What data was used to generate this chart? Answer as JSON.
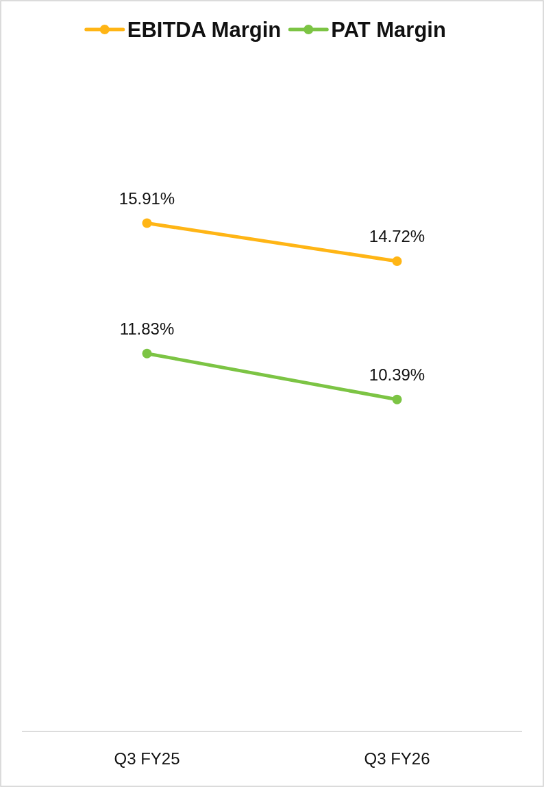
{
  "chart_data": {
    "type": "line",
    "categories": [
      "Q3 FY25",
      "Q3 FY26"
    ],
    "tick_labels": "x",
    "legend": "top",
    "marker": "circle",
    "line_style": "solid",
    "series": [
      {
        "name": "EBITDA Margin",
        "color": "#ffb515",
        "values": [
          15.91,
          14.72
        ],
        "value_labels": [
          "15.91%",
          "14.72%"
        ]
      },
      {
        "name": "PAT Margin",
        "color": "#7cc444",
        "values": [
          11.83,
          10.39
        ],
        "value_labels": [
          "11.83%",
          "10.39%"
        ]
      }
    ]
  }
}
